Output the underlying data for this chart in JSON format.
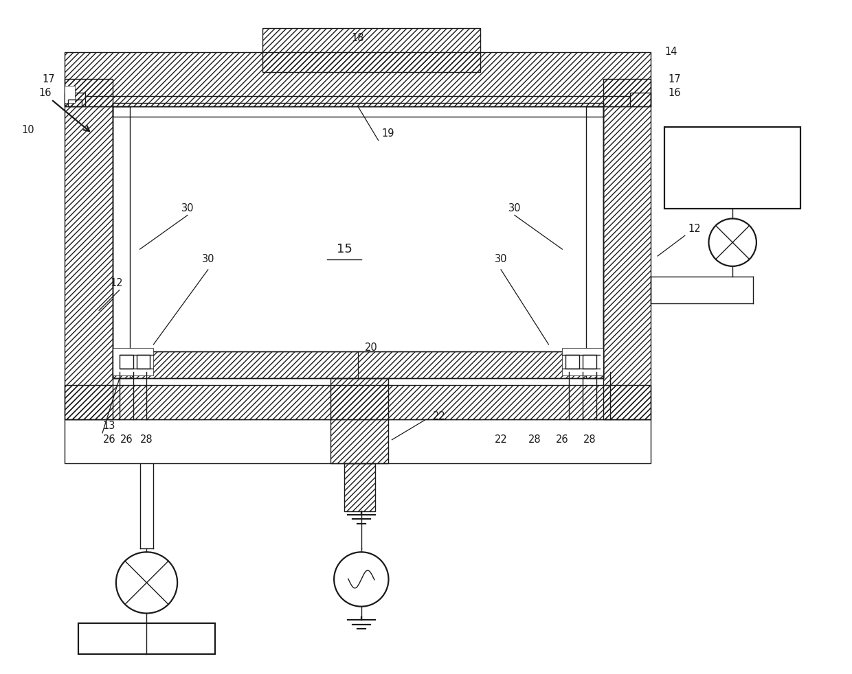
{
  "bg_color": "#ffffff",
  "lc": "#1a1a1a",
  "fig_width": 12.4,
  "fig_height": 9.82,
  "dpi": 100
}
